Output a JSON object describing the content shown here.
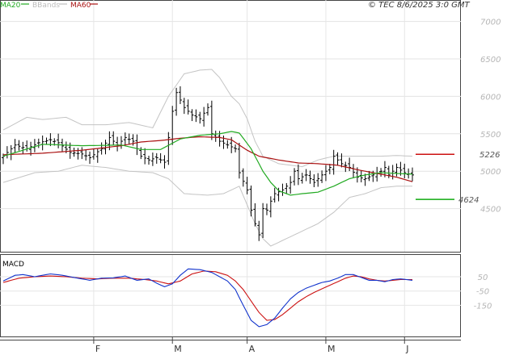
{
  "chart_data": {
    "type": "candlestick",
    "instrument": "TEC",
    "timestamp": "© TEC 8/6/2025 3:0 GMT",
    "legend": [
      {
        "label": "MA20",
        "color": "#22aa22"
      },
      {
        "label": "BBands",
        "color": "#bdbdbd"
      },
      {
        "label": "MA60",
        "color": "#aa1111"
      }
    ],
    "price_axis": {
      "ylim": [
        4000,
        7200
      ],
      "ticks": [
        4500,
        5000,
        5500,
        6000,
        6500,
        7000
      ],
      "tick_labels": [
        "4500",
        "5000",
        "5500",
        "6000",
        "6500",
        "7000"
      ]
    },
    "x_labels": [
      "F",
      "M",
      "A",
      "M",
      "J"
    ],
    "x_label_index": [
      23,
      43,
      62,
      82,
      102
    ],
    "n_bars": 105,
    "levels": [
      {
        "value": 5226,
        "label": "5226",
        "color": "#cc1111"
      },
      {
        "value": 4624,
        "label": "4624",
        "color": "#11aa11"
      }
    ],
    "macd": {
      "title": "MACD",
      "ylim": [
        -340,
        180
      ],
      "ticks": [
        50,
        -50,
        -150
      ],
      "tick_labels": [
        "50",
        "-50",
        "-150"
      ],
      "macd_keys": [
        [
          0,
          20
        ],
        [
          3,
          60
        ],
        [
          5,
          65
        ],
        [
          8,
          50
        ],
        [
          12,
          70
        ],
        [
          15,
          60
        ],
        [
          18,
          45
        ],
        [
          22,
          25
        ],
        [
          25,
          40
        ],
        [
          28,
          42
        ],
        [
          31,
          55
        ],
        [
          34,
          25
        ],
        [
          37,
          35
        ],
        [
          39,
          5
        ],
        [
          41,
          -20
        ],
        [
          43,
          0
        ],
        [
          45,
          60
        ],
        [
          47,
          105
        ],
        [
          50,
          100
        ],
        [
          53,
          80
        ],
        [
          55,
          50
        ],
        [
          57,
          20
        ],
        [
          59,
          -40
        ],
        [
          61,
          -150
        ],
        [
          63,
          -255
        ],
        [
          65,
          -300
        ],
        [
          67,
          -285
        ],
        [
          69,
          -240
        ],
        [
          71,
          -170
        ],
        [
          73,
          -105
        ],
        [
          75,
          -60
        ],
        [
          77,
          -30
        ],
        [
          79,
          -10
        ],
        [
          81,
          10
        ],
        [
          83,
          20
        ],
        [
          85,
          40
        ],
        [
          87,
          65
        ],
        [
          89,
          65
        ],
        [
          91,
          45
        ],
        [
          93,
          25
        ],
        [
          95,
          25
        ],
        [
          97,
          15
        ],
        [
          99,
          30
        ],
        [
          101,
          35
        ],
        [
          104,
          25
        ]
      ],
      "signal_keys": [
        [
          0,
          10
        ],
        [
          4,
          40
        ],
        [
          8,
          50
        ],
        [
          12,
          55
        ],
        [
          16,
          50
        ],
        [
          20,
          40
        ],
        [
          24,
          35
        ],
        [
          28,
          40
        ],
        [
          32,
          40
        ],
        [
          36,
          30
        ],
        [
          39,
          20
        ],
        [
          42,
          0
        ],
        [
          45,
          20
        ],
        [
          48,
          70
        ],
        [
          51,
          90
        ],
        [
          54,
          85
        ],
        [
          57,
          60
        ],
        [
          59,
          20
        ],
        [
          61,
          -40
        ],
        [
          63,
          -120
        ],
        [
          65,
          -200
        ],
        [
          67,
          -255
        ],
        [
          69,
          -250
        ],
        [
          71,
          -215
        ],
        [
          73,
          -170
        ],
        [
          75,
          -125
        ],
        [
          77,
          -90
        ],
        [
          79,
          -60
        ],
        [
          81,
          -35
        ],
        [
          83,
          -10
        ],
        [
          85,
          15
        ],
        [
          87,
          40
        ],
        [
          89,
          55
        ],
        [
          91,
          50
        ],
        [
          93,
          35
        ],
        [
          95,
          25
        ],
        [
          97,
          20
        ],
        [
          99,
          25
        ],
        [
          101,
          30
        ],
        [
          104,
          30
        ]
      ]
    },
    "price_keys": [
      [
        0,
        5200
      ],
      [
        3,
        5350
      ],
      [
        6,
        5300
      ],
      [
        9,
        5380
      ],
      [
        12,
        5420
      ],
      [
        14,
        5380
      ],
      [
        17,
        5250
      ],
      [
        20,
        5230
      ],
      [
        22,
        5180
      ],
      [
        25,
        5300
      ],
      [
        27,
        5450
      ],
      [
        29,
        5350
      ],
      [
        31,
        5450
      ],
      [
        33,
        5400
      ],
      [
        35,
        5200
      ],
      [
        37,
        5150
      ],
      [
        39,
        5180
      ],
      [
        41,
        5120
      ],
      [
        42,
        5450
      ],
      [
        43,
        5800
      ],
      [
        44,
        6050
      ],
      [
        46,
        5850
      ],
      [
        48,
        5750
      ],
      [
        50,
        5700
      ],
      [
        52,
        5850
      ],
      [
        53,
        5500
      ],
      [
        55,
        5400
      ],
      [
        57,
        5350
      ],
      [
        59,
        5300
      ],
      [
        60,
        4980
      ],
      [
        62,
        4750
      ],
      [
        63,
        4480
      ],
      [
        64,
        4300
      ],
      [
        65,
        4150
      ],
      [
        66,
        4500
      ],
      [
        67,
        4480
      ],
      [
        68,
        4600
      ],
      [
        69,
        4700
      ],
      [
        71,
        4750
      ],
      [
        73,
        4850
      ],
      [
        74,
        5000
      ],
      [
        75,
        4900
      ],
      [
        77,
        4950
      ],
      [
        79,
        4850
      ],
      [
        81,
        4950
      ],
      [
        83,
        5050
      ],
      [
        84,
        5200
      ],
      [
        85,
        5150
      ],
      [
        86,
        5100
      ],
      [
        88,
        5050
      ],
      [
        90,
        4920
      ],
      [
        92,
        4900
      ],
      [
        94,
        4950
      ],
      [
        96,
        5000
      ],
      [
        97,
        5050
      ],
      [
        98,
        4950
      ],
      [
        100,
        5050
      ],
      [
        102,
        4980
      ],
      [
        104,
        4950
      ]
    ],
    "ma20_keys": [
      [
        0,
        5200
      ],
      [
        10,
        5360
      ],
      [
        20,
        5340
      ],
      [
        30,
        5350
      ],
      [
        35,
        5290
      ],
      [
        40,
        5290
      ],
      [
        45,
        5430
      ],
      [
        50,
        5480
      ],
      [
        55,
        5500
      ],
      [
        58,
        5530
      ],
      [
        60,
        5510
      ],
      [
        63,
        5300
      ],
      [
        66,
        5000
      ],
      [
        68,
        4850
      ],
      [
        70,
        4740
      ],
      [
        73,
        4680
      ],
      [
        76,
        4700
      ],
      [
        80,
        4720
      ],
      [
        84,
        4800
      ],
      [
        88,
        4900
      ],
      [
        92,
        4950
      ],
      [
        96,
        4980
      ],
      [
        100,
        4970
      ],
      [
        104,
        4960
      ]
    ],
    "ma60_keys": [
      [
        0,
        5220
      ],
      [
        10,
        5240
      ],
      [
        20,
        5280
      ],
      [
        25,
        5310
      ],
      [
        30,
        5340
      ],
      [
        35,
        5390
      ],
      [
        40,
        5410
      ],
      [
        45,
        5440
      ],
      [
        50,
        5460
      ],
      [
        55,
        5450
      ],
      [
        58,
        5420
      ],
      [
        62,
        5280
      ],
      [
        65,
        5200
      ],
      [
        70,
        5150
      ],
      [
        75,
        5110
      ],
      [
        80,
        5100
      ],
      [
        85,
        5080
      ],
      [
        90,
        5020
      ],
      [
        95,
        4970
      ],
      [
        100,
        4920
      ],
      [
        104,
        4860
      ]
    ],
    "bb_upper_keys": [
      [
        0,
        5550
      ],
      [
        6,
        5720
      ],
      [
        10,
        5690
      ],
      [
        16,
        5720
      ],
      [
        20,
        5620
      ],
      [
        26,
        5620
      ],
      [
        32,
        5650
      ],
      [
        38,
        5580
      ],
      [
        42,
        6000
      ],
      [
        46,
        6300
      ],
      [
        50,
        6350
      ],
      [
        53,
        6360
      ],
      [
        55,
        6250
      ],
      [
        58,
        6000
      ],
      [
        60,
        5900
      ],
      [
        62,
        5700
      ],
      [
        64,
        5400
      ],
      [
        66,
        5200
      ],
      [
        70,
        5100
      ],
      [
        76,
        5060
      ],
      [
        80,
        5150
      ],
      [
        84,
        5200
      ],
      [
        88,
        5200
      ],
      [
        92,
        5200
      ],
      [
        96,
        5200
      ],
      [
        100,
        5210
      ],
      [
        104,
        5200
      ]
    ],
    "bb_lower_keys": [
      [
        0,
        4850
      ],
      [
        8,
        4980
      ],
      [
        14,
        5000
      ],
      [
        20,
        5080
      ],
      [
        26,
        5050
      ],
      [
        32,
        5000
      ],
      [
        38,
        4980
      ],
      [
        42,
        4900
      ],
      [
        46,
        4700
      ],
      [
        52,
        4680
      ],
      [
        56,
        4700
      ],
      [
        60,
        4800
      ],
      [
        62,
        4550
      ],
      [
        64,
        4300
      ],
      [
        66,
        4100
      ],
      [
        68,
        4000
      ],
      [
        72,
        4100
      ],
      [
        76,
        4200
      ],
      [
        80,
        4300
      ],
      [
        84,
        4450
      ],
      [
        88,
        4650
      ],
      [
        92,
        4700
      ],
      [
        96,
        4780
      ],
      [
        100,
        4800
      ],
      [
        104,
        4800
      ]
    ]
  }
}
